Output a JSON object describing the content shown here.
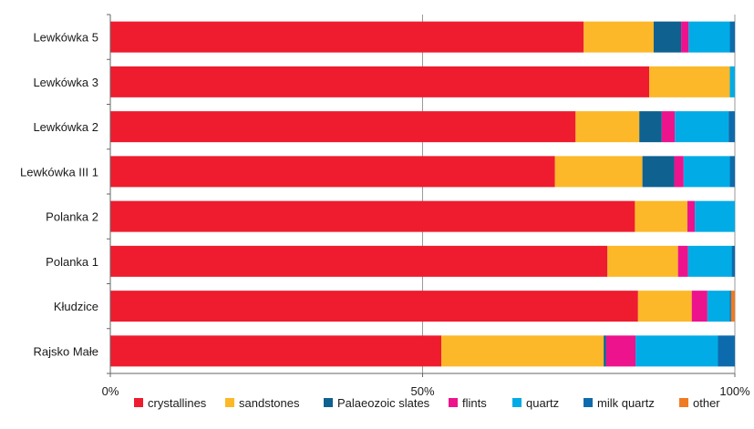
{
  "chart_data": {
    "type": "bar",
    "orientation": "horizontal",
    "stacked": true,
    "normalized_percent": true,
    "categories": [
      "Lewkówka 5",
      "Lewkówka 3",
      "Lewkówka 2",
      "Lewkówka III 1",
      "Polanka 2",
      "Polanka 1",
      "Kłudzice",
      "Rajsko Małe"
    ],
    "series": [
      {
        "name": "crystallines",
        "color": "#ee1c2e",
        "values": [
          75.8,
          86.3,
          74.5,
          71.2,
          84.0,
          79.6,
          84.5,
          53.0
        ]
      },
      {
        "name": "sandstones",
        "color": "#fcb829",
        "values": [
          11.2,
          12.9,
          10.2,
          14.0,
          8.4,
          11.3,
          8.6,
          26.0
        ]
      },
      {
        "name": "Palaeozoic slates",
        "color": "#0f6190",
        "values": [
          4.4,
          0.0,
          3.6,
          5.1,
          0.0,
          0.0,
          0.0,
          0.4
        ]
      },
      {
        "name": "flints",
        "color": "#ec138c",
        "values": [
          1.2,
          0.0,
          2.1,
          1.5,
          1.2,
          1.6,
          2.5,
          4.7
        ]
      },
      {
        "name": "quartz",
        "color": "#00abe6",
        "values": [
          6.6,
          0.8,
          8.6,
          7.4,
          6.4,
          7.0,
          3.6,
          13.2
        ]
      },
      {
        "name": "milk quartz",
        "color": "#0d6bad",
        "values": [
          0.8,
          0.0,
          1.0,
          0.8,
          0.0,
          0.5,
          0.2,
          2.7
        ]
      },
      {
        "name": "other",
        "color": "#f07a22",
        "values": [
          0.0,
          0.0,
          0.0,
          0.0,
          0.0,
          0.0,
          0.6,
          0.0
        ]
      }
    ],
    "x_ticks": [
      "0%",
      "50%",
      "100%"
    ],
    "xlim": [
      0,
      100
    ],
    "grid": "vertical at 50%",
    "legend_position": "bottom"
  }
}
